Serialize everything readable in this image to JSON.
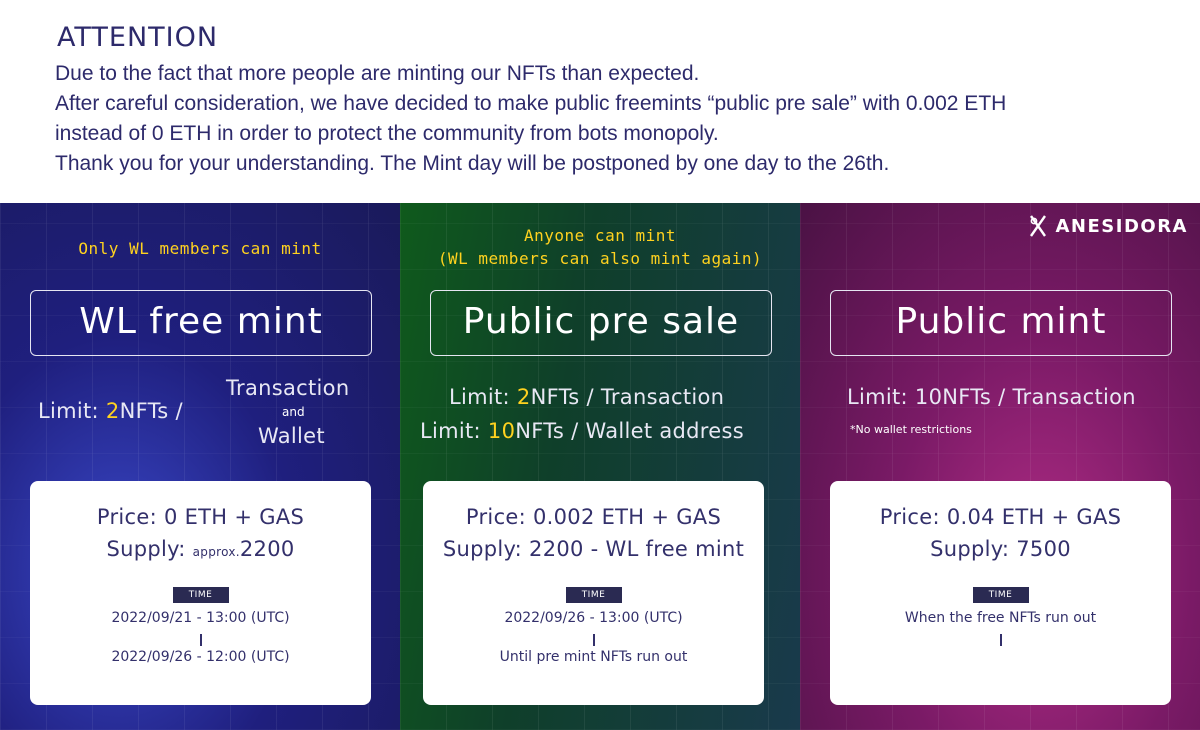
{
  "notice": {
    "title": "ATTENTION",
    "lines": [
      "Due to the fact that more people are minting our NFTs than expected.",
      "After careful consideration, we have decided to make public freemints “public pre sale” with 0.002 ETH",
      "instead of 0 ETH in order to protect the community from bots monopoly.",
      "Thank you for your understanding. The Mint day will be postponed by one day to the 26th."
    ]
  },
  "brand": {
    "name": "ANESIDORA",
    "icon": "anesidora-logo-icon"
  },
  "panels": [
    {
      "eligibility": [
        "Only WL members can mint"
      ],
      "title": "WL free mint",
      "limit": {
        "prefix": "Limit: ",
        "value": "2",
        "suffix": "NFTs /",
        "scope_top": "Transaction",
        "scope_and": "and",
        "scope_bottom": "Wallet"
      },
      "price": "Price: 0 ETH + GAS",
      "supply": {
        "label": "Supply: ",
        "approx": "approx.",
        "value": "2200"
      },
      "time_label": "TIME",
      "time_start": "2022/09/21 - 13:00 (UTC)",
      "time_end": "2022/09/26 - 12:00 (UTC)"
    },
    {
      "eligibility": [
        "Anyone can mint",
        "(WL members can also mint again)"
      ],
      "title": "Public pre sale",
      "limit_tx": {
        "prefix": "Limit: ",
        "value": "2",
        "suffix": "NFTs / Transaction"
      },
      "limit_wallet": {
        "prefix": "Limit: ",
        "value": "10",
        "suffix": "NFTs / Wallet address"
      },
      "price": "Price: 0.002 ETH + GAS",
      "supply": "Supply: 2200 - WL free mint",
      "time_label": "TIME",
      "time_start": "2022/09/26 - 13:00 (UTC)",
      "time_end": "Until pre mint NFTs run out"
    },
    {
      "title": "Public mint",
      "limit": "Limit: 10NFTs / Transaction",
      "note": "*No wallet restrictions",
      "price": "Price: 0.04 ETH + GAS",
      "supply": "Supply: 7500",
      "time_label": "TIME",
      "time_start": "When the free NFTs run out"
    }
  ],
  "colors": {
    "highlight": "#ffd21f",
    "text_dark": "#2d2a6b",
    "panel_wl": "#1f1f7e",
    "panel_presale": "#0f4a2a",
    "panel_public": "#7a1a66"
  }
}
